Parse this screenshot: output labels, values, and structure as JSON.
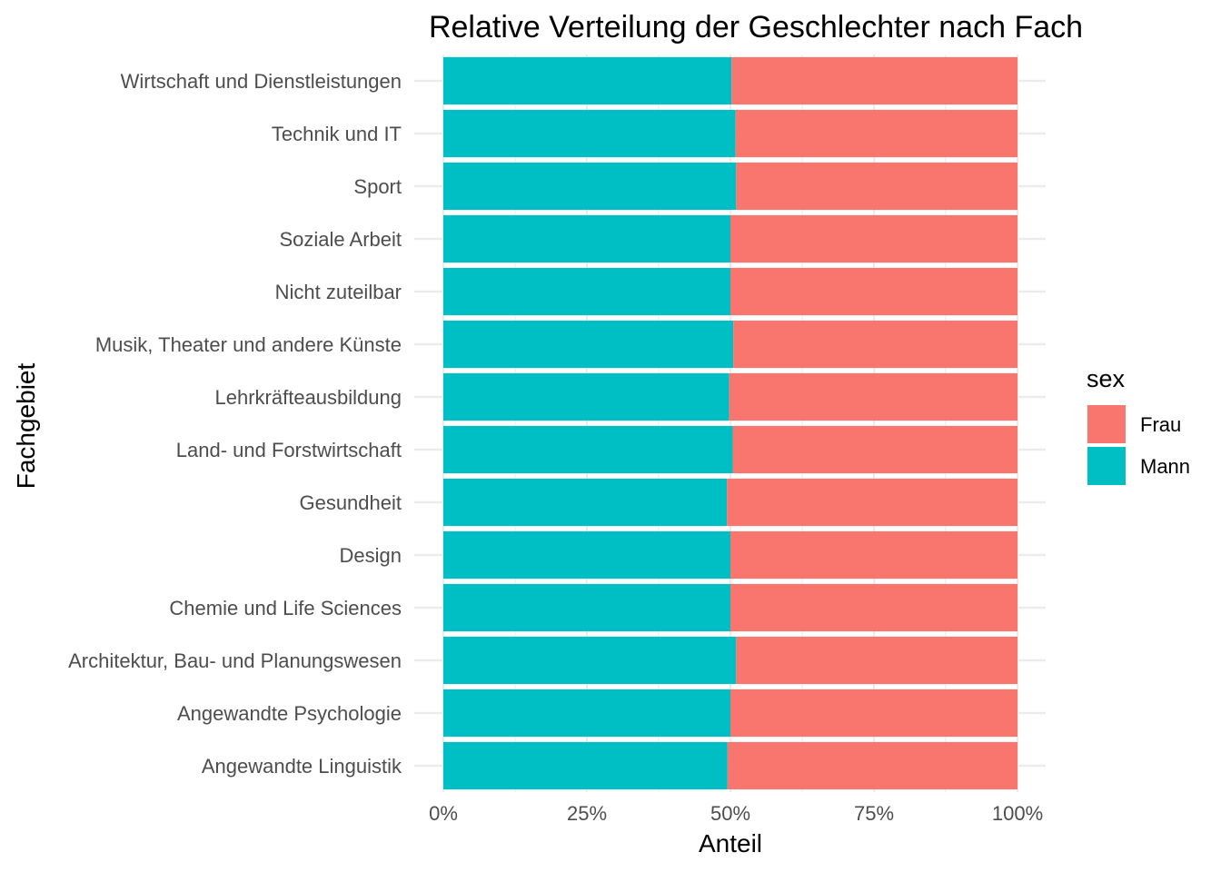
{
  "chart_data": {
    "type": "bar",
    "orientation": "horizontal",
    "stacked": "percent",
    "title": "Relative Verteilung der Geschlechter nach Fach",
    "xlabel": "Anteil",
    "ylabel": "Fachgebiet",
    "xlim": [
      0,
      1
    ],
    "x_ticks": [
      "0%",
      "25%",
      "50%",
      "75%",
      "100%"
    ],
    "x_tick_values": [
      0,
      0.25,
      0.5,
      0.75,
      1
    ],
    "grid": true,
    "categories": [
      "Angewandte Linguistik",
      "Angewandte Psychologie",
      "Architektur, Bau- und Planungswesen",
      "Chemie und Life Sciences",
      "Design",
      "Gesundheit",
      "Land- und Forstwirtschaft",
      "Lehrkräfteausbildung",
      "Musik, Theater und andere Künste",
      "Nicht zuteilbar",
      "Soziale Arbeit",
      "Sport",
      "Technik und IT",
      "Wirtschaft und Dienstleistungen"
    ],
    "series": [
      {
        "name": "Mann",
        "color": "#00BFC4",
        "values": [
          0.495,
          0.5,
          0.51,
          0.5,
          0.5,
          0.494,
          0.504,
          0.498,
          0.505,
          0.5,
          0.5,
          0.51,
          0.509,
          0.502
        ]
      },
      {
        "name": "Frau",
        "color": "#F8766D",
        "values": [
          0.505,
          0.5,
          0.49,
          0.5,
          0.5,
          0.506,
          0.496,
          0.502,
          0.495,
          0.5,
          0.5,
          0.49,
          0.491,
          0.498
        ]
      }
    ],
    "legend": {
      "title": "sex",
      "placement": "right",
      "entries": [
        {
          "label": "Frau",
          "color": "#F8766D"
        },
        {
          "label": "Mann",
          "color": "#00BFC4"
        }
      ]
    }
  }
}
